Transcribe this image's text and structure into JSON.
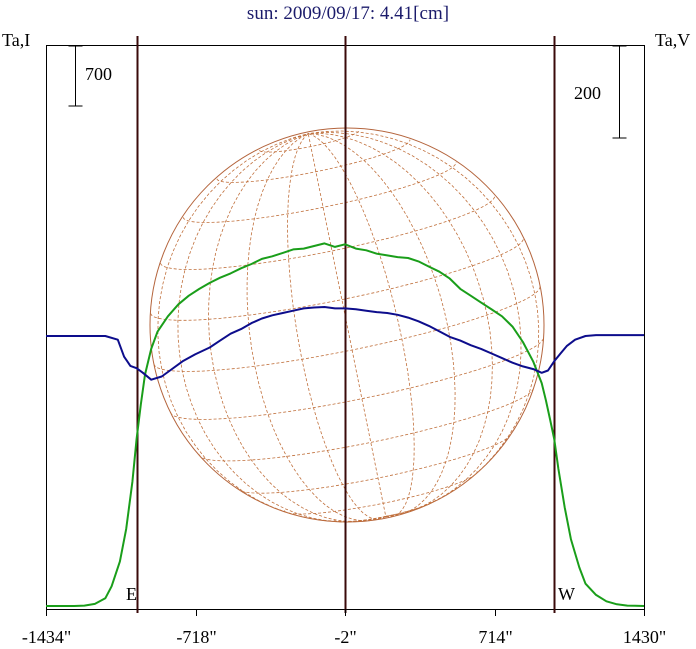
{
  "title": "sun: 2009/09/17: 4.41[cm]",
  "left_axis_label": "Ta,I",
  "right_axis_label": "Ta,V",
  "scale_bar_left": "700",
  "scale_bar_right": "200",
  "edge_label_east": "E",
  "edge_label_west": "W",
  "colors": {
    "background": "#ffffff",
    "intensity": "#1a9e1a",
    "polarization": "#0d0d8c",
    "disk": "#b4643c",
    "grid": "#c0703c",
    "marker_lines": "#3a0a0a",
    "title_text": "#1b1b6b"
  },
  "chart_data": {
    "type": "line",
    "title": "sun: 2009/09/17: 4.41[cm]",
    "xlabel": "",
    "ylabel_left": "Ta,I",
    "ylabel_right": "Ta,V",
    "xlim": [
      -1434,
      1430
    ],
    "x_tick_labels": [
      "-1434\"",
      "-718\"",
      "-2\"",
      "714\"",
      "1430\""
    ],
    "x_ticks": [
      -1434,
      -718,
      -2,
      714,
      1430
    ],
    "vertical_markers": [
      -1000,
      -2,
      1000
    ],
    "grid": false,
    "scale_bars": [
      {
        "axis": "left",
        "label": "700",
        "value": 700
      },
      {
        "axis": "right",
        "label": "200",
        "value": 200
      }
    ],
    "series": [
      {
        "name": "",
        "axis": "left",
        "color": "#1a9e1a",
        "x": [
          -1434,
          -1300,
          -1250,
          -1200,
          -1150,
          -1120,
          -1080,
          -1050,
          -1020,
          -1000,
          -980,
          -960,
          -930,
          -900,
          -850,
          -800,
          -750,
          -700,
          -650,
          -600,
          -550,
          -500,
          -450,
          -400,
          -350,
          -300,
          -250,
          -200,
          -150,
          -100,
          -50,
          -2,
          50,
          100,
          150,
          200,
          250,
          300,
          350,
          400,
          450,
          500,
          550,
          600,
          650,
          700,
          750,
          800,
          850,
          900,
          940,
          960,
          980,
          1000,
          1020,
          1050,
          1080,
          1120,
          1150,
          1200,
          1250,
          1300,
          1350,
          1430
        ],
        "values": [
          0,
          0,
          5,
          25,
          90,
          230,
          520,
          900,
          1450,
          1950,
          2350,
          2700,
          3000,
          3200,
          3380,
          3520,
          3620,
          3700,
          3770,
          3830,
          3880,
          3940,
          3990,
          4050,
          4080,
          4120,
          4160,
          4170,
          4200,
          4230,
          4190,
          4220,
          4170,
          4150,
          4110,
          4090,
          4070,
          4060,
          4020,
          3960,
          3900,
          3820,
          3700,
          3620,
          3540,
          3460,
          3380,
          3260,
          3080,
          2850,
          2600,
          2400,
          2180,
          1950,
          1600,
          1150,
          780,
          450,
          260,
          130,
          55,
          20,
          5,
          0
        ]
      },
      {
        "name": "",
        "axis": "right",
        "color": "#0d0d8c",
        "x": [
          -1434,
          -1150,
          -1090,
          -1060,
          -1030,
          -1000,
          -970,
          -930,
          -880,
          -840,
          -780,
          -720,
          -650,
          -600,
          -550,
          -500,
          -450,
          -400,
          -350,
          -300,
          -250,
          -200,
          -150,
          -100,
          -50,
          -2,
          50,
          100,
          150,
          200,
          250,
          300,
          350,
          400,
          450,
          500,
          550,
          600,
          650,
          700,
          750,
          800,
          850,
          900,
          940,
          970,
          1000,
          1030,
          1060,
          1100,
          1150,
          1200,
          1300,
          1430
        ],
        "values": [
          0,
          0,
          -8,
          -45,
          -65,
          -70,
          -80,
          -95,
          -88,
          -75,
          -55,
          -40,
          -25,
          -10,
          5,
          15,
          28,
          38,
          45,
          50,
          55,
          60,
          62,
          63,
          60,
          60,
          58,
          55,
          52,
          50,
          46,
          40,
          32,
          22,
          10,
          -2,
          -10,
          -20,
          -28,
          -38,
          -48,
          -58,
          -66,
          -72,
          -80,
          -75,
          -55,
          -38,
          -22,
          -8,
          0,
          2,
          2,
          2
        ]
      }
    ]
  }
}
